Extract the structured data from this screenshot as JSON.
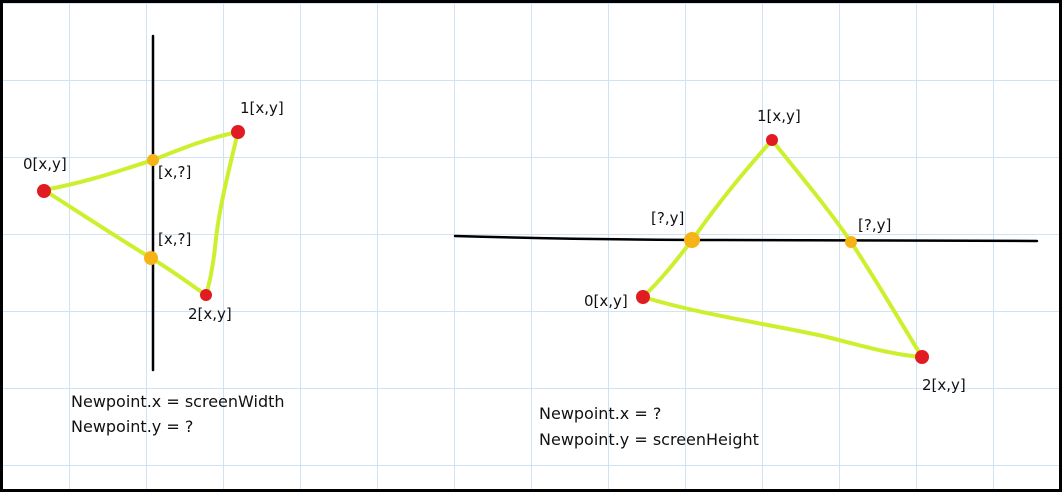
{
  "colors": {
    "grid": "#cfe3f5",
    "triangle_edge": "#ccf02e",
    "vertex": "#e11b22",
    "intersection": "#f5b318",
    "clip_line": "#000000"
  },
  "left_diagram": {
    "vertex_0": "0[x,y]",
    "vertex_1": "1[x,y]",
    "vertex_2": "2[x,y]",
    "intersection_top": "[x,?]",
    "intersection_bottom": "[x,?]",
    "note_line_1": "Newpoint.x = screenWidth",
    "note_line_2": "Newpoint.y = ?"
  },
  "right_diagram": {
    "vertex_0": "0[x,y]",
    "vertex_1": "1[x,y]",
    "vertex_2": "2[x,y]",
    "intersection_left": "[?,y]",
    "intersection_right": "[?,y]",
    "note_line_1": "Newpoint.x = ?",
    "note_line_2": "Newpoint.y = screenHeight"
  }
}
